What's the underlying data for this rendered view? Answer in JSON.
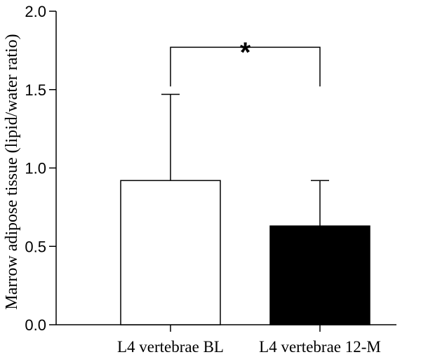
{
  "chart_data": {
    "type": "bar",
    "categories": [
      "L4 vertebrae BL",
      "L4 vertebrae 12-M"
    ],
    "values": [
      0.92,
      0.63
    ],
    "error_upper": [
      1.47,
      0.92
    ],
    "bar_fills": [
      "#ffffff",
      "#000000"
    ],
    "ylabel": "Marrow adipose tissue (lipid/water ratio)",
    "xlabel": "",
    "ylim": [
      0,
      2.0
    ],
    "yticks": [
      0.0,
      0.5,
      1.0,
      1.5,
      2.0
    ],
    "ytick_labels": [
      "0.0",
      "0.5",
      "1.0",
      "1.5",
      "2.0"
    ],
    "significance": {
      "label": "*",
      "between": [
        0,
        1
      ],
      "level": 1.6
    },
    "grid": false,
    "legend": "none"
  }
}
